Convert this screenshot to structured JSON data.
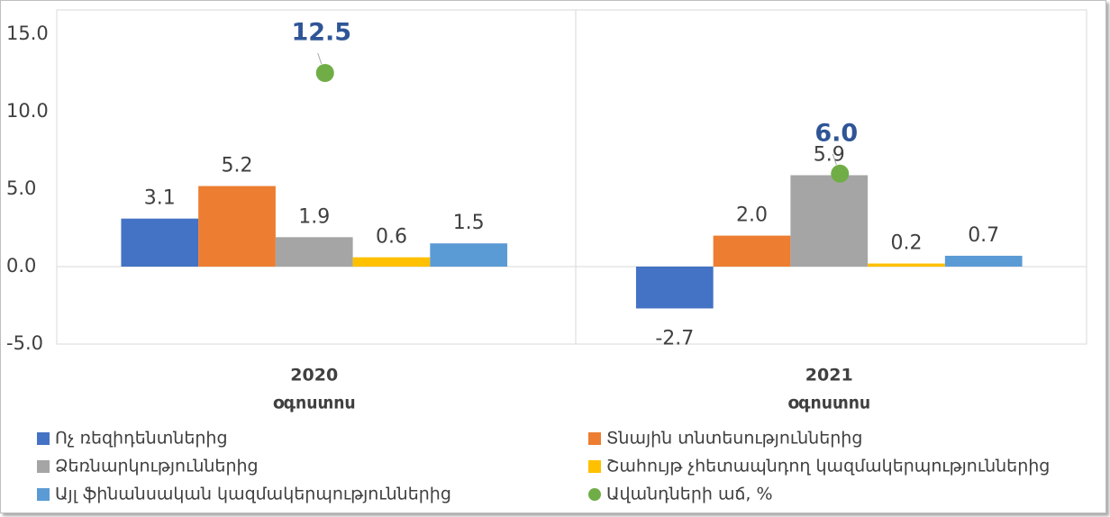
{
  "chart_data": {
    "type": "bar",
    "categories": [
      [
        "2020",
        "օգոստոս"
      ],
      [
        "2021",
        "օգոստոս"
      ]
    ],
    "series": [
      {
        "name": "Ոչ ռեզիդենտներից",
        "color": "#4472c4",
        "values": [
          3.1,
          -2.7
        ],
        "value_labels": [
          "3.1",
          "-2.7"
        ]
      },
      {
        "name": "Տնային տնտեսություններից",
        "color": "#ed7d31",
        "values": [
          5.2,
          2.0
        ],
        "value_labels": [
          "5.2",
          "2.0"
        ]
      },
      {
        "name": "Ձեռնարկություններից",
        "color": "#a5a5a5",
        "values": [
          1.9,
          5.9
        ],
        "value_labels": [
          "1.9",
          "5.9"
        ]
      },
      {
        "name": "Շահույթ չհետապնդող կազմակերպություններից",
        "color": "#ffc000",
        "values": [
          0.6,
          0.2
        ],
        "value_labels": [
          "0.6",
          "0.2"
        ]
      },
      {
        "name": "Այլ ֆինանսական կազմակերպություններից",
        "color": "#5b9bd5",
        "values": [
          1.5,
          0.7
        ],
        "value_labels": [
          "1.5",
          "0.7"
        ]
      },
      {
        "name": "Ավանդների աճ, %",
        "color": "#70ad47",
        "type": "dot",
        "values": [
          12.5,
          6.0
        ],
        "value_labels": [
          "12.5",
          "6.0"
        ]
      }
    ],
    "ylim": [
      -5,
      15
    ],
    "yticks": [
      {
        "value": 15,
        "label": "15.0"
      },
      {
        "value": 10,
        "label": "10.0"
      },
      {
        "value": 5,
        "label": "5.0"
      },
      {
        "value": 0,
        "label": "0.0"
      },
      {
        "value": -5,
        "label": "-5.0"
      }
    ],
    "grid": false
  }
}
